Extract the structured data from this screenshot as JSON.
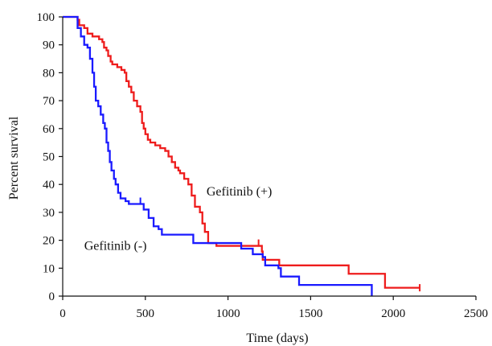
{
  "chart_data": {
    "type": "line",
    "title": "",
    "xlabel": "Time (days)",
    "ylabel": "Percent survival",
    "xlim": [
      0,
      2500
    ],
    "ylim": [
      0,
      100
    ],
    "xticks": [
      0,
      500,
      1000,
      1500,
      2000,
      2500
    ],
    "yticks": [
      0,
      10,
      20,
      30,
      40,
      50,
      60,
      70,
      80,
      90,
      100
    ],
    "xtick_labels": [
      "0",
      "500",
      "1000",
      "1500",
      "2000",
      "2500"
    ],
    "ytick_labels": [
      "0",
      "10",
      "20",
      "30",
      "40",
      "50",
      "60",
      "70",
      "80",
      "90",
      "100"
    ],
    "grid": false,
    "legend": "none",
    "series": [
      {
        "name": "Gefitinib (+)",
        "color": "#ee1c1c",
        "points": [
          [
            0,
            100
          ],
          [
            80,
            100
          ],
          [
            90,
            99
          ],
          [
            100,
            97
          ],
          [
            130,
            96
          ],
          [
            150,
            94
          ],
          [
            180,
            93
          ],
          [
            220,
            92
          ],
          [
            240,
            91
          ],
          [
            250,
            89
          ],
          [
            265,
            88
          ],
          [
            275,
            86
          ],
          [
            290,
            84
          ],
          [
            300,
            83
          ],
          [
            330,
            82
          ],
          [
            355,
            81
          ],
          [
            375,
            80
          ],
          [
            385,
            77
          ],
          [
            400,
            75
          ],
          [
            415,
            73
          ],
          [
            430,
            70
          ],
          [
            450,
            68
          ],
          [
            470,
            66
          ],
          [
            480,
            62
          ],
          [
            490,
            60
          ],
          [
            500,
            58
          ],
          [
            515,
            56
          ],
          [
            530,
            55
          ],
          [
            560,
            54
          ],
          [
            590,
            53
          ],
          [
            620,
            52
          ],
          [
            640,
            50
          ],
          [
            660,
            48
          ],
          [
            680,
            46
          ],
          [
            700,
            45
          ],
          [
            710,
            44
          ],
          [
            735,
            42
          ],
          [
            760,
            40
          ],
          [
            780,
            36
          ],
          [
            800,
            32
          ],
          [
            830,
            30
          ],
          [
            845,
            26
          ],
          [
            860,
            23
          ],
          [
            880,
            19
          ],
          [
            930,
            18
          ],
          [
            1000,
            18
          ],
          [
            1100,
            18
          ],
          [
            1195,
            18
          ],
          [
            1205,
            16
          ],
          [
            1210,
            13
          ],
          [
            1300,
            13
          ],
          [
            1310,
            11
          ],
          [
            1500,
            11
          ],
          [
            1720,
            11
          ],
          [
            1730,
            8
          ],
          [
            1940,
            8
          ],
          [
            1950,
            3
          ],
          [
            2160,
            3
          ]
        ],
        "censor_marks": [
          [
            1185,
            19
          ],
          [
            2160,
            3
          ]
        ]
      },
      {
        "name": "Gefitinib (-)",
        "color": "#1a1aff",
        "points": [
          [
            0,
            100
          ],
          [
            80,
            100
          ],
          [
            90,
            96
          ],
          [
            110,
            93
          ],
          [
            130,
            90
          ],
          [
            150,
            89
          ],
          [
            165,
            85
          ],
          [
            180,
            80
          ],
          [
            190,
            75
          ],
          [
            200,
            70
          ],
          [
            215,
            68
          ],
          [
            230,
            65
          ],
          [
            245,
            62
          ],
          [
            255,
            60
          ],
          [
            265,
            55
          ],
          [
            275,
            52
          ],
          [
            285,
            48
          ],
          [
            295,
            45
          ],
          [
            310,
            42
          ],
          [
            320,
            40
          ],
          [
            335,
            37
          ],
          [
            350,
            35
          ],
          [
            380,
            34
          ],
          [
            400,
            33
          ],
          [
            470,
            33
          ],
          [
            490,
            31
          ],
          [
            520,
            28
          ],
          [
            550,
            25
          ],
          [
            580,
            24
          ],
          [
            600,
            22
          ],
          [
            700,
            22
          ],
          [
            780,
            22
          ],
          [
            790,
            19
          ],
          [
            1000,
            19
          ],
          [
            1080,
            17
          ],
          [
            1150,
            15
          ],
          [
            1210,
            14
          ],
          [
            1225,
            11
          ],
          [
            1300,
            11
          ],
          [
            1305,
            10
          ],
          [
            1320,
            7
          ],
          [
            1420,
            7
          ],
          [
            1430,
            4
          ],
          [
            1860,
            4
          ],
          [
            1870,
            0
          ]
        ],
        "censor_marks": [
          [
            165,
            87
          ],
          [
            470,
            34
          ]
        ]
      }
    ],
    "annotations": [
      {
        "series": "Gefitinib (+)",
        "x": 870,
        "y": 36
      },
      {
        "series": "Gefitinib (-)",
        "x": 130,
        "y": 16.5
      }
    ]
  }
}
